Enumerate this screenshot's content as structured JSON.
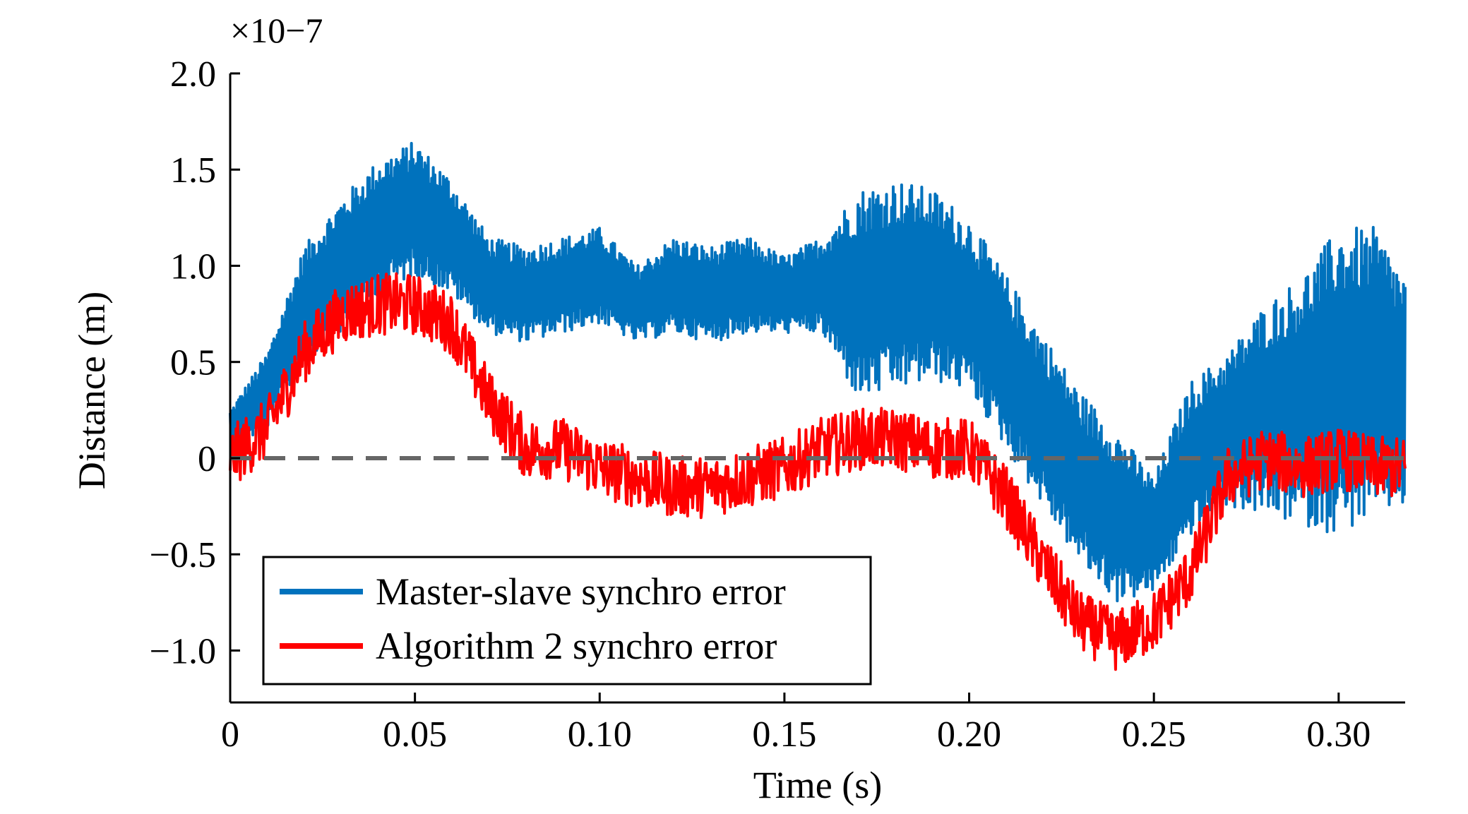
{
  "chart_data": {
    "type": "line",
    "xlabel": "Time (s)",
    "ylabel": "Distance (m)",
    "y_multiplier": "×10−7",
    "xlim": [
      0,
      0.318
    ],
    "ylim": [
      -1.27,
      2.0
    ],
    "x_ticks": [
      0,
      0.05,
      0.1,
      0.15,
      0.2,
      0.25,
      0.3
    ],
    "x_tick_labels": [
      "0",
      "0.05",
      "0.10",
      "0.15",
      "0.20",
      "0.25",
      "0.30"
    ],
    "y_ticks": [
      -1.0,
      -0.5,
      0,
      0.5,
      1.0,
      1.5,
      2.0
    ],
    "y_tick_labels": [
      "−1.0",
      "−0.5",
      "0",
      "0.5",
      "1.0",
      "1.5",
      "2.0"
    ],
    "grid": false,
    "legend_position": "bottom-left",
    "reference_line": {
      "y": 0,
      "style": "dashed",
      "color": "#666666"
    },
    "series": [
      {
        "name": "Master-slave synchro error",
        "color": "#0072BD",
        "x": [
          0,
          0.01,
          0.02,
          0.03,
          0.04,
          0.05,
          0.06,
          0.07,
          0.08,
          0.09,
          0.1,
          0.11,
          0.12,
          0.13,
          0.14,
          0.15,
          0.16,
          0.17,
          0.18,
          0.19,
          0.2,
          0.21,
          0.22,
          0.23,
          0.24,
          0.25,
          0.26,
          0.27,
          0.28,
          0.29,
          0.3,
          0.31,
          0.318
        ],
        "values": [
          0.15,
          0.35,
          0.8,
          1.0,
          1.2,
          1.3,
          1.15,
          0.9,
          0.85,
          0.9,
          0.95,
          0.8,
          0.9,
          0.85,
          0.9,
          0.85,
          0.9,
          0.85,
          0.9,
          0.9,
          0.8,
          0.5,
          0.2,
          -0.1,
          -0.3,
          -0.4,
          0.0,
          0.15,
          0.25,
          0.3,
          0.4,
          0.45,
          0.35
        ],
        "amplitude": [
          0.1,
          0.2,
          0.3,
          0.35,
          0.35,
          0.35,
          0.3,
          0.25,
          0.25,
          0.25,
          0.25,
          0.2,
          0.25,
          0.25,
          0.25,
          0.2,
          0.25,
          0.55,
          0.55,
          0.5,
          0.45,
          0.45,
          0.45,
          0.45,
          0.45,
          0.3,
          0.4,
          0.4,
          0.55,
          0.65,
          0.8,
          0.75,
          0.6
        ]
      },
      {
        "name": "Algorithm 2 synchro error",
        "color": "#FF0000",
        "x": [
          0,
          0.01,
          0.02,
          0.03,
          0.04,
          0.05,
          0.06,
          0.07,
          0.08,
          0.09,
          0.1,
          0.11,
          0.12,
          0.13,
          0.14,
          0.15,
          0.16,
          0.17,
          0.18,
          0.19,
          0.2,
          0.21,
          0.22,
          0.23,
          0.24,
          0.25,
          0.26,
          0.27,
          0.28,
          0.29,
          0.3,
          0.31,
          0.318
        ],
        "values": [
          0.0,
          0.15,
          0.55,
          0.75,
          0.8,
          0.8,
          0.7,
          0.3,
          0.05,
          0.05,
          -0.05,
          -0.1,
          -0.15,
          -0.15,
          -0.1,
          -0.05,
          0.05,
          0.1,
          0.1,
          0.05,
          0.05,
          -0.2,
          -0.55,
          -0.85,
          -0.95,
          -0.85,
          -0.6,
          -0.1,
          0.0,
          -0.05,
          0.0,
          -0.05,
          -0.05
        ]
      }
    ]
  }
}
